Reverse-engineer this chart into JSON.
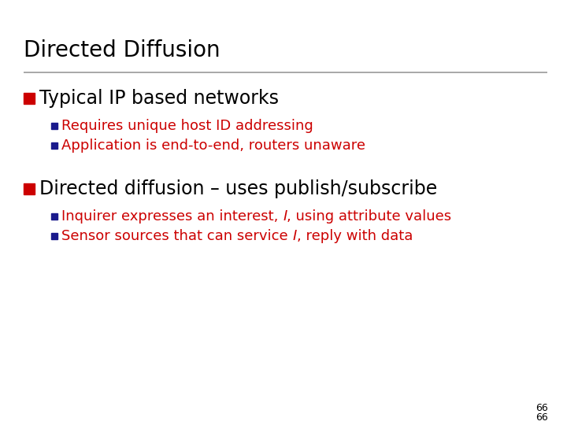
{
  "title": "Directed Diffusion",
  "background_color": "#ffffff",
  "title_color": "#000000",
  "title_fontsize": 20,
  "separator_color": "#999999",
  "bullet_color": "#cc0000",
  "sub_bullet_color": "#1a1a8c",
  "bullet1_text": "Typical IP based networks",
  "bullet1_color": "#000000",
  "bullet1_fontsize": 17,
  "sub_bullets_1": [
    "Requires unique host ID addressing",
    "Application is end-to-end, routers unaware"
  ],
  "sub_bullets_1_color": "#cc0000",
  "sub_bullets_1_fontsize": 13,
  "bullet2_text": "Directed diffusion – uses publish/subscribe",
  "bullet2_color": "#000000",
  "bullet2_fontsize": 17,
  "sub_bullets_2": [
    [
      "Inquirer expresses an interest, ",
      "I",
      ", using attribute values"
    ],
    [
      "Sensor sources that can service ",
      "I",
      ", reply with data"
    ]
  ],
  "sub_bullets_2_color": "#cc0000",
  "sub_bullets_2_fontsize": 13,
  "page_number": "66",
  "page_number_color": "#000000",
  "page_number_fontsize": 9
}
